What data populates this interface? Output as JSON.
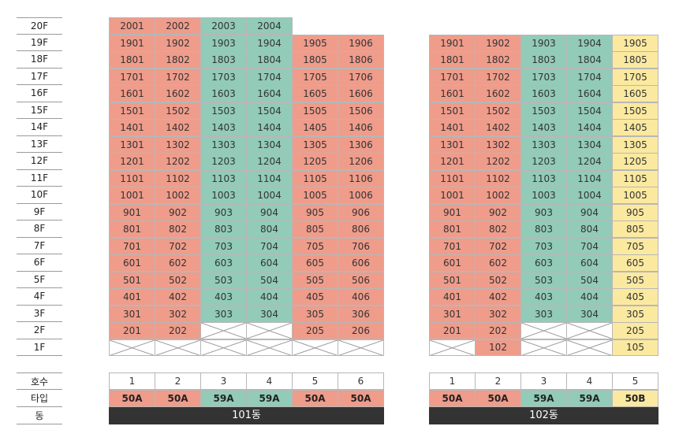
{
  "floors": [
    "20F",
    "19F",
    "18F",
    "17F",
    "16F",
    "15F",
    "14F",
    "13F",
    "12F",
    "11F",
    "10F",
    "9F",
    "8F",
    "7F",
    "6F",
    "5F",
    "4F",
    "3F",
    "2F",
    "1F"
  ],
  "legend_labels": [
    "호수",
    "타입",
    "동"
  ],
  "colors": {
    "red": "#ef9c8b",
    "green": "#92cbb8",
    "yellow": "#fbe9a0",
    "dark": "#333333"
  },
  "buildings": [
    {
      "name": "101동",
      "columns": [
        {
          "line": "1",
          "type": "50A",
          "color": "red"
        },
        {
          "line": "2",
          "type": "50A",
          "color": "red"
        },
        {
          "line": "3",
          "type": "59A",
          "color": "green"
        },
        {
          "line": "4",
          "type": "59A",
          "color": "green"
        },
        {
          "line": "5",
          "type": "50A",
          "color": "red"
        },
        {
          "line": "6",
          "type": "50A",
          "color": "red"
        }
      ],
      "grid": [
        [
          "2001",
          "2002",
          "2003",
          "2004",
          "",
          ""
        ],
        [
          "1901",
          "1902",
          "1903",
          "1904",
          "1905",
          "1906"
        ],
        [
          "1801",
          "1802",
          "1803",
          "1804",
          "1805",
          "1806"
        ],
        [
          "1701",
          "1702",
          "1703",
          "1704",
          "1705",
          "1706"
        ],
        [
          "1601",
          "1602",
          "1603",
          "1604",
          "1605",
          "1606"
        ],
        [
          "1501",
          "1502",
          "1503",
          "1504",
          "1505",
          "1506"
        ],
        [
          "1401",
          "1402",
          "1403",
          "1404",
          "1405",
          "1406"
        ],
        [
          "1301",
          "1302",
          "1303",
          "1304",
          "1305",
          "1306"
        ],
        [
          "1201",
          "1202",
          "1203",
          "1204",
          "1205",
          "1206"
        ],
        [
          "1101",
          "1102",
          "1103",
          "1104",
          "1105",
          "1106"
        ],
        [
          "1001",
          "1002",
          "1003",
          "1004",
          "1005",
          "1006"
        ],
        [
          "901",
          "902",
          "903",
          "904",
          "905",
          "906"
        ],
        [
          "801",
          "802",
          "803",
          "804",
          "805",
          "806"
        ],
        [
          "701",
          "702",
          "703",
          "704",
          "705",
          "706"
        ],
        [
          "601",
          "602",
          "603",
          "604",
          "605",
          "606"
        ],
        [
          "501",
          "502",
          "503",
          "504",
          "505",
          "506"
        ],
        [
          "401",
          "402",
          "403",
          "404",
          "405",
          "406"
        ],
        [
          "301",
          "302",
          "303",
          "304",
          "305",
          "306"
        ],
        [
          "201",
          "202",
          "X",
          "X",
          "205",
          "206"
        ],
        [
          "X",
          "X",
          "X",
          "X",
          "X",
          "X"
        ]
      ]
    },
    {
      "name": "102동",
      "columns": [
        {
          "line": "1",
          "type": "50A",
          "color": "red"
        },
        {
          "line": "2",
          "type": "50A",
          "color": "red"
        },
        {
          "line": "3",
          "type": "59A",
          "color": "green"
        },
        {
          "line": "4",
          "type": "59A",
          "color": "green"
        },
        {
          "line": "5",
          "type": "50B",
          "color": "yellow"
        }
      ],
      "grid": [
        [
          "",
          "",
          "",
          "",
          ""
        ],
        [
          "1901",
          "1902",
          "1903",
          "1904",
          "1905"
        ],
        [
          "1801",
          "1802",
          "1803",
          "1804",
          "1805"
        ],
        [
          "1701",
          "1702",
          "1703",
          "1704",
          "1705"
        ],
        [
          "1601",
          "1602",
          "1603",
          "1604",
          "1605"
        ],
        [
          "1501",
          "1502",
          "1503",
          "1504",
          "1505"
        ],
        [
          "1401",
          "1402",
          "1403",
          "1404",
          "1405"
        ],
        [
          "1301",
          "1302",
          "1303",
          "1304",
          "1305"
        ],
        [
          "1201",
          "1202",
          "1203",
          "1204",
          "1205"
        ],
        [
          "1101",
          "1102",
          "1103",
          "1104",
          "1105"
        ],
        [
          "1001",
          "1002",
          "1003",
          "1004",
          "1005"
        ],
        [
          "901",
          "902",
          "903",
          "904",
          "905"
        ],
        [
          "801",
          "802",
          "803",
          "804",
          "805"
        ],
        [
          "701",
          "702",
          "703",
          "704",
          "705"
        ],
        [
          "601",
          "602",
          "603",
          "604",
          "605"
        ],
        [
          "501",
          "502",
          "503",
          "504",
          "505"
        ],
        [
          "401",
          "402",
          "403",
          "404",
          "405"
        ],
        [
          "301",
          "302",
          "303",
          "304",
          "305"
        ],
        [
          "201",
          "202",
          "X",
          "X",
          "205"
        ],
        [
          "X",
          "102",
          "X",
          "X",
          "105"
        ]
      ]
    }
  ]
}
